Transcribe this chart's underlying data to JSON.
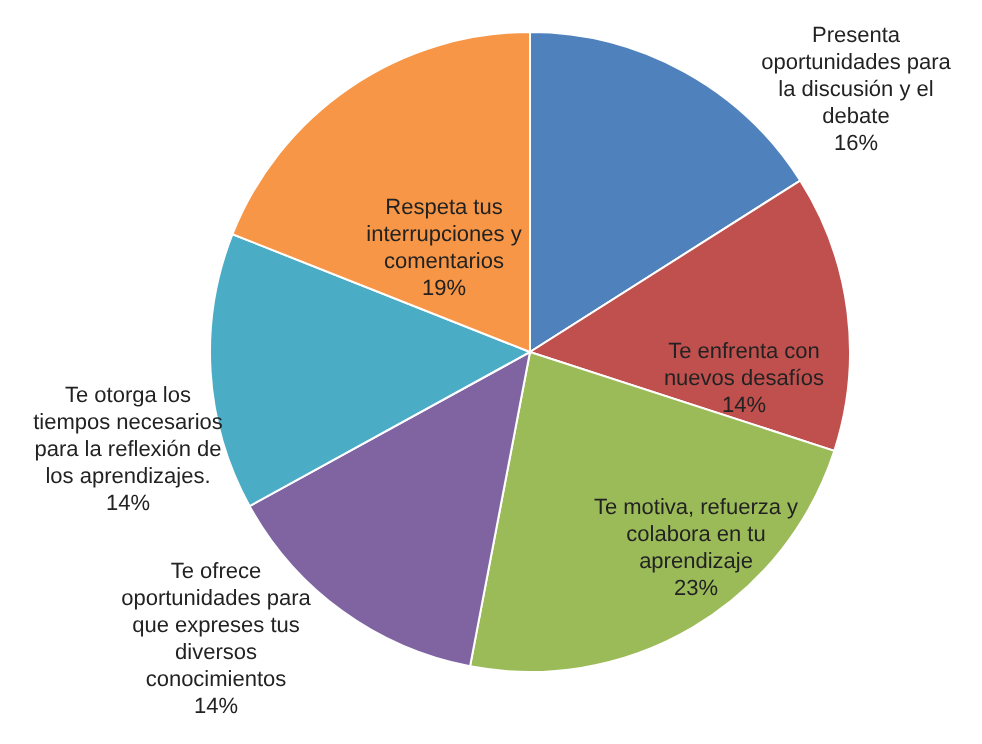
{
  "chart_data": {
    "type": "pie",
    "categories": [
      "Presenta oportunidades para la discusión y el debate",
      "Te enfrenta con nuevos desafíos",
      "Te motiva, refuerza y colabora en tu aprendizaje",
      "Te ofrece oportunidades para que expreses tus diversos conocimientos",
      "Te otorga los tiempos necesarios para la reflexión de los aprendizajes.",
      "Respeta tus interrupciones y comentarios"
    ],
    "values": [
      16,
      14,
      23,
      14,
      14,
      19
    ],
    "value_labels": [
      "16%",
      "14%",
      "23%",
      "14%",
      "14%",
      "19%"
    ],
    "colors": [
      "#4f81bd",
      "#c0504d",
      "#9bbb59",
      "#8064a2",
      "#4bacc6",
      "#f79646"
    ],
    "legend": false
  }
}
